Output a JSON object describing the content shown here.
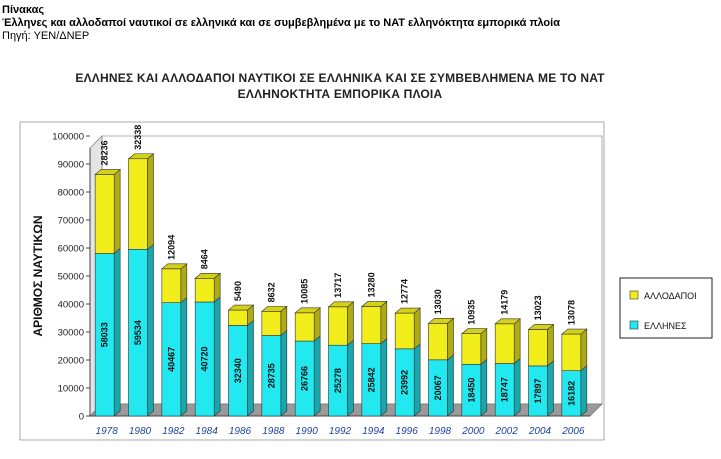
{
  "header": {
    "label": "Πίνακας",
    "caption": "Έλληνες και αλλοδαποί ναυτικοί σε ελληνικά και σε συμβεβλημένα με το ΝΑΤ ελληνόκτητα εμπορικά πλοία",
    "source": "Πηγή: ΥΕΝ/ΔΝΕΡ"
  },
  "chart_data": {
    "type": "bar",
    "stacked": true,
    "title_line1": "ΕΛΛΗΝΕΣ ΚΑΙ ΑΛΛΟΔΑΠΟΙ ΝΑΥΤΙΚΟΙ ΣΕ ΕΛΛΗΝΙΚΑ ΚΑΙ ΣΕ ΣΥΜΒΕΒΛΗΜΕΝΑ ΜΕ ΤΟ ΝΑΤ",
    "title_line2": "ΕΛΛΗΝΟΚΤΗΤΑ ΕΜΠΟΡΙΚΑ ΠΛΟΙΑ",
    "ylabel": "ΑΡΙΘΜΟΣ ΝΑΥΤΙΚΩΝ",
    "xlabel": "",
    "ylim": [
      0,
      100000
    ],
    "yticks": [
      "0",
      "10000",
      "20000",
      "30000",
      "40000",
      "50000",
      "60000",
      "70000",
      "80000",
      "90000",
      "100000"
    ],
    "categories": [
      "1978",
      "1980",
      "1982",
      "1984",
      "1986",
      "1988",
      "1990",
      "1992",
      "1994",
      "1996",
      "1998",
      "2000",
      "2002",
      "2004",
      "2006"
    ],
    "series": [
      {
        "name": "ΕΛΛΗΝΕΣ",
        "color": "#22e8ef",
        "values": [
          58033,
          59534,
          40467,
          40720,
          32340,
          28735,
          26766,
          25278,
          25842,
          23992,
          20067,
          18450,
          18747,
          17897,
          16182
        ]
      },
      {
        "name": "ΑΛΛΟΔΑΠΟΙ",
        "color": "#f2ee1c",
        "values": [
          28236,
          32338,
          12094,
          8464,
          5490,
          8632,
          10085,
          13717,
          13280,
          12774,
          13030,
          10935,
          14179,
          13023,
          13078
        ]
      }
    ],
    "legend_position": "right",
    "grid": false
  }
}
